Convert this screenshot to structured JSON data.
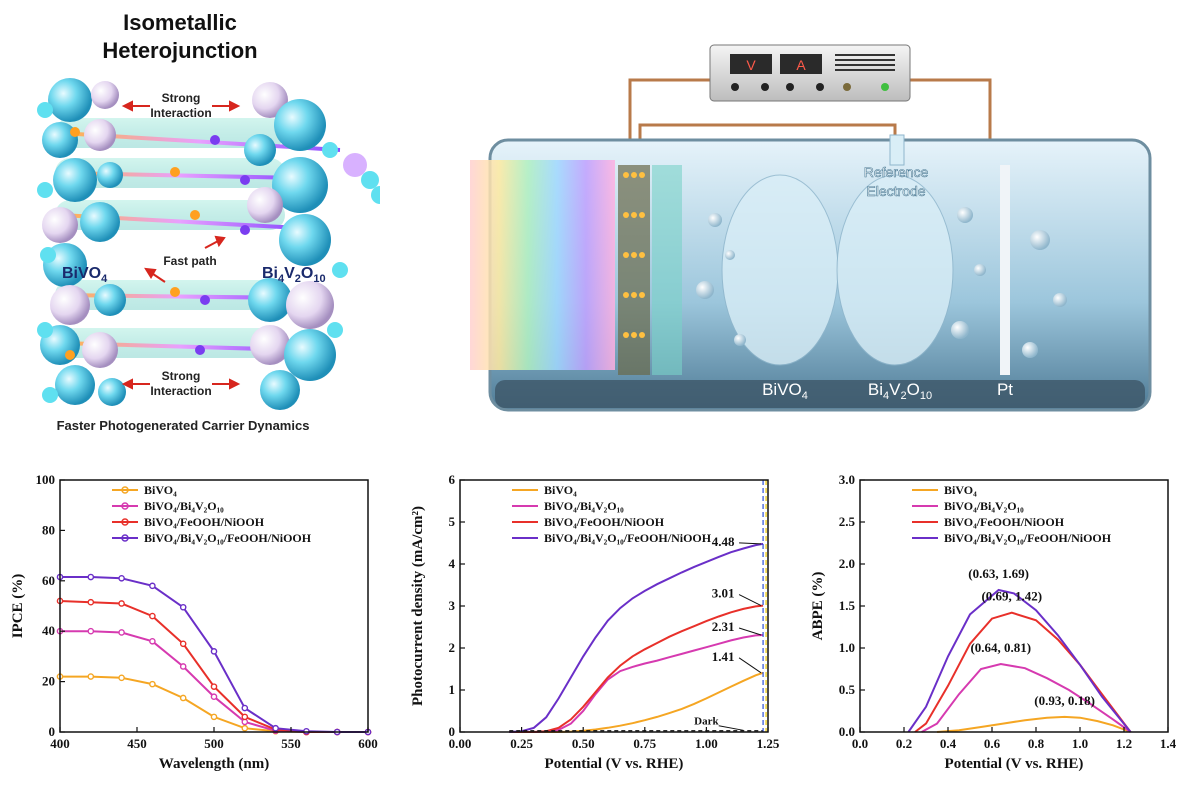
{
  "schematic": {
    "title_line1": "Isometallic",
    "title_line2": "Heterojunction",
    "strong_interaction_label_line1": "Strong",
    "strong_interaction_label_line2": "Interaction",
    "fast_path_label": "Fast path",
    "left_material": "BiVO",
    "left_material_sub": "4",
    "right_material_parts": [
      "Bi",
      "4",
      "V",
      "2",
      "O",
      "10"
    ],
    "caption": "Faster Photogenerated Carrier Dynamics"
  },
  "cell": {
    "meter_v": "V",
    "meter_a": "A",
    "reference_electrode_line1": "Reference",
    "reference_electrode_line2": "Electrode",
    "label_bivo4": "BiVO",
    "label_bivo4_sub": "4",
    "label_bi4v2o10_parts": [
      "Bi",
      "4",
      "V",
      "2",
      "O",
      "10"
    ],
    "label_pt": "Pt"
  },
  "colors": {
    "orange": "#F5A623",
    "magenta": "#D63AB0",
    "red": "#E8302A",
    "purple": "#6A2FC8",
    "blue_dashed": "#2B4FD8"
  },
  "chart_data": [
    {
      "type": "line",
      "xlabel": "Wavelength (nm)",
      "ylabel": "IPCE (%)",
      "xlim": [
        400,
        600
      ],
      "ylim": [
        0,
        100
      ],
      "xticks": [
        "400",
        "450",
        "500",
        "550",
        "600"
      ],
      "yticks": [
        "0",
        "20",
        "40",
        "60",
        "80",
        "100"
      ],
      "legend": [
        "BiVO₄",
        "BiVO₄/Bi₄V₂O₁₀",
        "BiVO₄/FeOOH/NiOOH",
        "BiVO₄/Bi₄V₂O₁₀/FeOOH/NiOOH"
      ],
      "x": [
        400,
        420,
        440,
        460,
        480,
        500,
        520,
        540,
        560,
        580,
        600
      ],
      "series": [
        {
          "name": "BiVO₄",
          "values": [
            22,
            22,
            21.5,
            19,
            13.5,
            6,
            1.5,
            0.3,
            0,
            0,
            0
          ]
        },
        {
          "name": "BiVO₄/Bi₄V₂O₁₀",
          "values": [
            40,
            40,
            39.5,
            36,
            26,
            14,
            4,
            0.5,
            0,
            0,
            0
          ]
        },
        {
          "name": "BiVO₄/FeOOH/NiOOH",
          "values": [
            52,
            51.5,
            51,
            46,
            35,
            18,
            6,
            1,
            0,
            0,
            0
          ]
        },
        {
          "name": "BiVO₄/Bi₄V₂O₁₀/FeOOH/NiOOH",
          "values": [
            61.5,
            61.5,
            61,
            58,
            49.5,
            32,
            9.5,
            1.5,
            0.3,
            0,
            0
          ]
        }
      ]
    },
    {
      "type": "line",
      "xlabel": "Potential (V vs. RHE)",
      "ylabel": "Photocurrent density (mA/cm²)",
      "xlim": [
        0,
        1.25
      ],
      "ylim": [
        0,
        6
      ],
      "xticks": [
        "0.00",
        "0.25",
        "0.50",
        "0.75",
        "1.00",
        "1.25"
      ],
      "yticks": [
        "0",
        "1",
        "2",
        "3",
        "4",
        "5",
        "6"
      ],
      "legend": [
        "BiVO₄",
        "BiVO₄/Bi₄V₂O₁₀",
        "BiVO₄/FeOOH/NiOOH",
        "BiVO₄/Bi₄V₂O₁₀/FeOOH/NiOOH"
      ],
      "x": [
        0.2,
        0.25,
        0.3,
        0.35,
        0.4,
        0.45,
        0.5,
        0.55,
        0.6,
        0.65,
        0.7,
        0.75,
        0.8,
        0.85,
        0.9,
        0.95,
        1.0,
        1.05,
        1.1,
        1.15,
        1.2,
        1.23
      ],
      "series": [
        {
          "name": "BiVO₄",
          "values": [
            0,
            0,
            0,
            0,
            0,
            0.01,
            0.03,
            0.06,
            0.1,
            0.15,
            0.21,
            0.28,
            0.36,
            0.45,
            0.55,
            0.67,
            0.8,
            0.94,
            1.08,
            1.22,
            1.35,
            1.41
          ]
        },
        {
          "name": "BiVO₄/Bi₄V₂O₁₀",
          "values": [
            0,
            0,
            0,
            0.01,
            0.05,
            0.2,
            0.5,
            0.9,
            1.25,
            1.45,
            1.55,
            1.63,
            1.7,
            1.78,
            1.86,
            1.94,
            2.02,
            2.1,
            2.18,
            2.25,
            2.3,
            2.31
          ]
        },
        {
          "name": "BiVO₄/FeOOH/NiOOH",
          "values": [
            0,
            0,
            0,
            0.02,
            0.1,
            0.3,
            0.6,
            0.95,
            1.3,
            1.58,
            1.8,
            1.97,
            2.12,
            2.27,
            2.4,
            2.52,
            2.64,
            2.75,
            2.85,
            2.93,
            2.99,
            3.01
          ]
        },
        {
          "name": "BiVO₄/Bi₄V₂O₁₀/FeOOH/NiOOH",
          "values": [
            0,
            0.02,
            0.1,
            0.35,
            0.8,
            1.3,
            1.8,
            2.25,
            2.65,
            2.95,
            3.18,
            3.36,
            3.52,
            3.66,
            3.8,
            3.93,
            4.05,
            4.17,
            4.28,
            4.37,
            4.45,
            4.48
          ]
        }
      ],
      "dark_label": "Dark",
      "annotations": [
        {
          "text": "4.48",
          "x": 1.23,
          "y": 4.48
        },
        {
          "text": "3.01",
          "x": 1.23,
          "y": 3.01
        },
        {
          "text": "2.31",
          "x": 1.23,
          "y": 2.31
        },
        {
          "text": "1.41",
          "x": 1.23,
          "y": 1.41
        }
      ],
      "vline_x": 1.23
    },
    {
      "type": "line",
      "xlabel": "Potential (V vs. RHE)",
      "ylabel": "ABPE (%)",
      "xlim": [
        0,
        1.4
      ],
      "ylim": [
        0,
        3.0
      ],
      "xticks": [
        "0.0",
        "0.2",
        "0.4",
        "0.6",
        "0.8",
        "1.0",
        "1.2",
        "1.4"
      ],
      "yticks": [
        "0.0",
        "0.5",
        "1.0",
        "1.5",
        "2.0",
        "2.5",
        "3.0"
      ],
      "legend": [
        "BiVO₄",
        "BiVO₄/Bi₄V₂O₁₀",
        "BiVO₄/FeOOH/NiOOH",
        "BiVO₄/Bi₄V₂O₁₀/FeOOH/NiOOH"
      ],
      "series": [
        {
          "name": "BiVO₄",
          "x": [
            0.35,
            0.45,
            0.55,
            0.65,
            0.75,
            0.85,
            0.93,
            1.0,
            1.08,
            1.15,
            1.23
          ],
          "values": [
            0,
            0.02,
            0.06,
            0.1,
            0.14,
            0.17,
            0.18,
            0.17,
            0.13,
            0.08,
            0
          ]
        },
        {
          "name": "BiVO₄/Bi₄V₂O₁₀",
          "x": [
            0.28,
            0.35,
            0.45,
            0.55,
            0.64,
            0.75,
            0.85,
            0.95,
            1.05,
            1.15,
            1.23
          ],
          "values": [
            0,
            0.1,
            0.45,
            0.75,
            0.81,
            0.76,
            0.64,
            0.5,
            0.33,
            0.15,
            0
          ]
        },
        {
          "name": "BiVO₄/FeOOH/NiOOH",
          "x": [
            0.25,
            0.3,
            0.4,
            0.5,
            0.6,
            0.69,
            0.8,
            0.9,
            1.0,
            1.1,
            1.23
          ],
          "values": [
            0,
            0.1,
            0.55,
            1.05,
            1.35,
            1.42,
            1.33,
            1.1,
            0.8,
            0.45,
            0
          ]
        },
        {
          "name": "BiVO₄/Bi₄V₂O₁₀/FeOOH/NiOOH",
          "x": [
            0.22,
            0.3,
            0.4,
            0.5,
            0.63,
            0.7,
            0.8,
            0.9,
            1.0,
            1.1,
            1.23
          ],
          "values": [
            0,
            0.3,
            0.9,
            1.4,
            1.69,
            1.65,
            1.45,
            1.15,
            0.8,
            0.42,
            0
          ]
        }
      ],
      "annotations": [
        {
          "text": "(0.63, 1.69)",
          "x": 0.63,
          "y": 1.69
        },
        {
          "text": "(0.69, 1.42)",
          "x": 0.69,
          "y": 1.42
        },
        {
          "text": "(0.64, 0.81)",
          "x": 0.64,
          "y": 0.81
        },
        {
          "text": "(0.93, 0.18)",
          "x": 0.93,
          "y": 0.18
        }
      ]
    }
  ]
}
